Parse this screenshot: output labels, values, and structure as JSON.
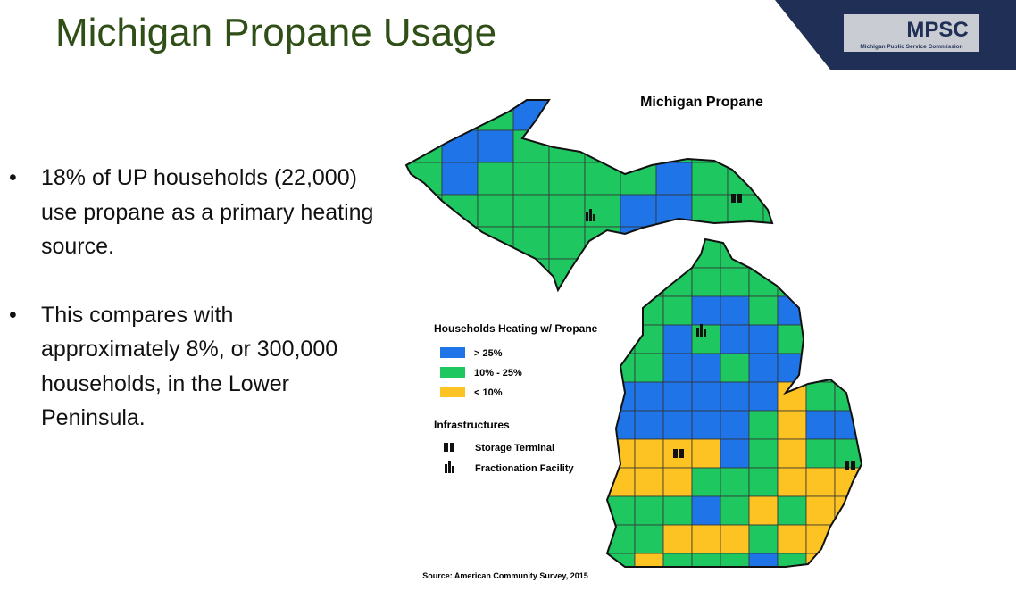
{
  "header": {
    "title": "Michigan Propane Usage",
    "logo": "MPSC",
    "logo_subtitle": "Michigan Public Service Commission"
  },
  "bullets": [
    "18% of UP households (22,000) use propane as a primary heating source.",
    "This compares with approximately 8%, or 300,000 households, in the Lower Peninsula."
  ],
  "map": {
    "title": "Michigan Propane",
    "legend": {
      "title": "Households Heating w/ Propane",
      "items": [
        "> 25%",
        "10% - 25%",
        "< 10%"
      ]
    },
    "infrastructure": {
      "title": "Infrastructures",
      "items": [
        "Storage Terminal",
        "Fractionation Facility"
      ]
    },
    "source": "Source: American Community Survey, 2015"
  }
}
